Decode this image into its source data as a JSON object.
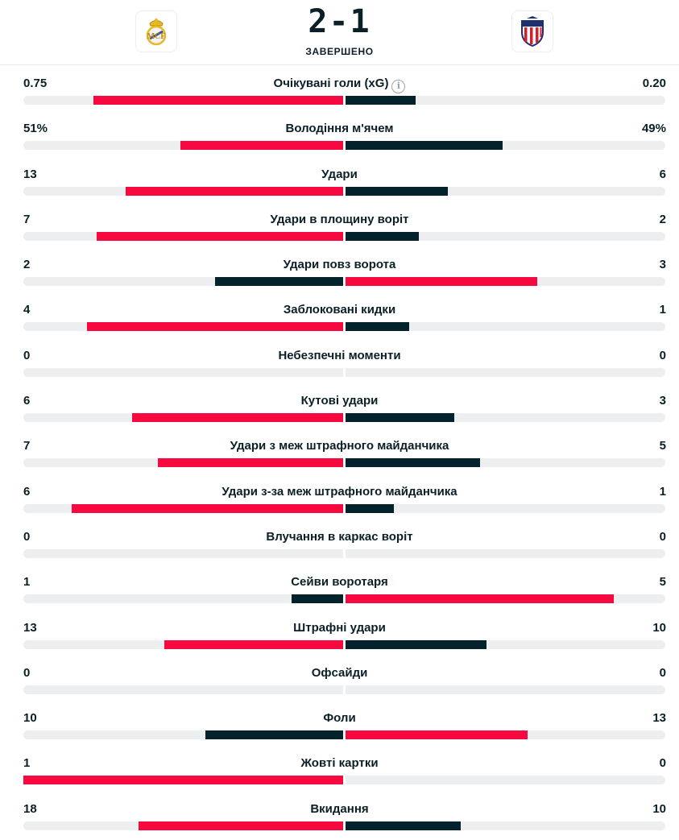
{
  "header": {
    "score": "2-1",
    "status": "ЗАВЕРШЕНО",
    "home_logo_icon": "real-madrid-crest-icon",
    "away_logo_icon": "atletico-madrid-crest-icon"
  },
  "colors": {
    "leader_bar": "#f5093e",
    "trailer_bar": "#04222b",
    "track": "#eceef0"
  },
  "stats": [
    {
      "label": "Очікувані голи (xG)",
      "home": "0.75",
      "away": "0.20",
      "home_frac": 0.78,
      "away_frac": 0.22,
      "info": true
    },
    {
      "label": "Володіння м'ячем",
      "home": "51%",
      "away": "49%",
      "home_frac": 0.51,
      "away_frac": 0.49
    },
    {
      "label": "Удари",
      "home": "13",
      "away": "6",
      "home_frac": 0.68,
      "away_frac": 0.32
    },
    {
      "label": "Удари в площину воріт",
      "home": "7",
      "away": "2",
      "home_frac": 0.77,
      "away_frac": 0.23
    },
    {
      "label": "Удари повз ворота",
      "home": "2",
      "away": "3",
      "home_frac": 0.4,
      "away_frac": 0.6
    },
    {
      "label": "Заблоковані кидки",
      "home": "4",
      "away": "1",
      "home_frac": 0.8,
      "away_frac": 0.2
    },
    {
      "label": "Небезпечні моменти",
      "home": "0",
      "away": "0",
      "home_frac": 0,
      "away_frac": 0
    },
    {
      "label": "Кутові удари",
      "home": "6",
      "away": "3",
      "home_frac": 0.66,
      "away_frac": 0.34
    },
    {
      "label": "Удари з меж штрафного майданчика",
      "home": "7",
      "away": "5",
      "home_frac": 0.58,
      "away_frac": 0.42
    },
    {
      "label": "Удари з-за меж штрафного майданчика",
      "home": "6",
      "away": "1",
      "home_frac": 0.85,
      "away_frac": 0.15
    },
    {
      "label": "Влучання в каркас воріт",
      "home": "0",
      "away": "0",
      "home_frac": 0,
      "away_frac": 0
    },
    {
      "label": "Сейви воротаря",
      "home": "1",
      "away": "5",
      "home_frac": 0.16,
      "away_frac": 0.84
    },
    {
      "label": "Штрафні удари",
      "home": "13",
      "away": "10",
      "home_frac": 0.56,
      "away_frac": 0.44
    },
    {
      "label": "Офсайди",
      "home": "0",
      "away": "0",
      "home_frac": 0,
      "away_frac": 0
    },
    {
      "label": "Фоли",
      "home": "10",
      "away": "13",
      "home_frac": 0.43,
      "away_frac": 0.57
    },
    {
      "label": "Жовті картки",
      "home": "1",
      "away": "0",
      "home_frac": 1.0,
      "away_frac": 0
    },
    {
      "label": "Вкидання",
      "home": "18",
      "away": "10",
      "home_frac": 0.64,
      "away_frac": 0.36
    }
  ]
}
